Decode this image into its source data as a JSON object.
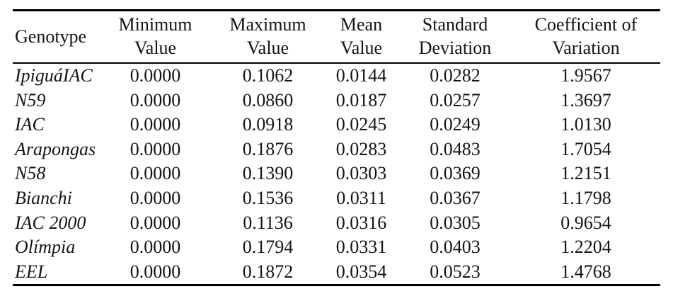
{
  "colors": {
    "background": "#ffffff",
    "text": "#141414",
    "rule": "#000000"
  },
  "table": {
    "header": {
      "genotype": "Genotype",
      "minimum": {
        "line1": "Minimum",
        "line2": "Value"
      },
      "maximum": {
        "line1": "Maximum",
        "line2": "Value"
      },
      "mean": {
        "line1": "Mean",
        "line2": "Value"
      },
      "std": {
        "line1": "Standard",
        "line2": "Deviation"
      },
      "cv": {
        "line1": "Coefficient of",
        "line2": "Variation"
      }
    },
    "rows": [
      {
        "genotype": "IpiguáIAC",
        "min": "0.0000",
        "max": "0.1062",
        "mean": "0.0144",
        "std": "0.0282",
        "cv": "1.9567"
      },
      {
        "genotype": "N59",
        "min": "0.0000",
        "max": "0.0860",
        "mean": "0.0187",
        "std": "0.0257",
        "cv": "1.3697"
      },
      {
        "genotype": "IAC",
        "min": "0.0000",
        "max": "0.0918",
        "mean": "0.0245",
        "std": "0.0249",
        "cv": "1.0130"
      },
      {
        "genotype": "Arapongas",
        "min": "0.0000",
        "max": "0.1876",
        "mean": "0.0283",
        "std": "0.0483",
        "cv": "1.7054"
      },
      {
        "genotype": "N58",
        "min": "0.0000",
        "max": "0.1390",
        "mean": "0.0303",
        "std": "0.0369",
        "cv": "1.2151"
      },
      {
        "genotype": "Bianchi",
        "min": "0.0000",
        "max": "0.1536",
        "mean": "0.0311",
        "std": "0.0367",
        "cv": "1.1798"
      },
      {
        "genotype": "IAC 2000",
        "min": "0.0000",
        "max": "0.1136",
        "mean": "0.0316",
        "std": "0.0305",
        "cv": "0.9654"
      },
      {
        "genotype": "Olímpia",
        "min": "0.0000",
        "max": "0.1794",
        "mean": "0.0331",
        "std": "0.0403",
        "cv": "1.2204"
      },
      {
        "genotype": "EEL",
        "min": "0.0000",
        "max": "0.1872",
        "mean": "0.0354",
        "std": "0.0523",
        "cv": "1.4768"
      }
    ]
  }
}
